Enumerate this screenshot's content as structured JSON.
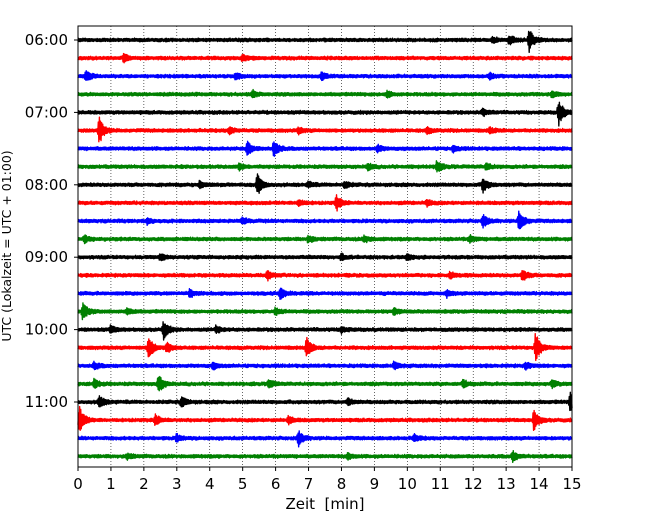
{
  "chart_data": {
    "type": "line",
    "title": "",
    "xlabel": "Zeit  [min]",
    "ylabel": "UTC (Lokalzeit = UTC + 01:00)",
    "xlim": [
      0,
      15
    ],
    "x_ticks": [
      "0",
      "1",
      "2",
      "3",
      "4",
      "5",
      "6",
      "7",
      "8",
      "9",
      "10",
      "11",
      "12",
      "13",
      "14",
      "15"
    ],
    "y_ticks": [
      "06:00",
      "07:00",
      "08:00",
      "09:00",
      "10:00",
      "11:00"
    ],
    "x_grid": "dotted vertical lines at each minute",
    "legend": "none",
    "colors": [
      "#000000",
      "#ff0000",
      "#0000ff",
      "#008000"
    ],
    "series": [
      {
        "start": "06:00",
        "color": "#000000",
        "events": [
          {
            "t": 13.7,
            "amp": 1.0
          },
          {
            "t": 13.1,
            "amp": 0.4
          },
          {
            "t": 12.6,
            "amp": 0.25
          }
        ]
      },
      {
        "start": "06:15",
        "color": "#ff0000",
        "events": [
          {
            "t": 1.4,
            "amp": 0.35
          },
          {
            "t": 5.0,
            "amp": 0.25
          }
        ]
      },
      {
        "start": "06:30",
        "color": "#0000ff",
        "events": [
          {
            "t": 0.25,
            "amp": 0.45
          },
          {
            "t": 4.8,
            "amp": 0.25
          },
          {
            "t": 7.4,
            "amp": 0.3
          },
          {
            "t": 12.5,
            "amp": 0.25
          }
        ]
      },
      {
        "start": "06:45",
        "color": "#008000",
        "events": [
          {
            "t": 5.3,
            "amp": 0.3
          },
          {
            "t": 9.4,
            "amp": 0.3
          },
          {
            "t": 14.4,
            "amp": 0.3
          }
        ]
      },
      {
        "start": "07:00",
        "color": "#000000",
        "events": [
          {
            "t": 14.6,
            "amp": 1.1
          },
          {
            "t": 12.3,
            "amp": 0.3
          }
        ]
      },
      {
        "start": "07:15",
        "color": "#ff0000",
        "events": [
          {
            "t": 0.65,
            "amp": 1.15
          },
          {
            "t": 4.6,
            "amp": 0.3
          },
          {
            "t": 6.7,
            "amp": 0.25
          },
          {
            "t": 10.6,
            "amp": 0.25
          },
          {
            "t": 12.5,
            "amp": 0.25
          }
        ]
      },
      {
        "start": "07:30",
        "color": "#0000ff",
        "events": [
          {
            "t": 5.15,
            "amp": 0.6
          },
          {
            "t": 5.95,
            "amp": 0.7
          },
          {
            "t": 9.1,
            "amp": 0.3
          },
          {
            "t": 11.4,
            "amp": 0.25
          }
        ]
      },
      {
        "start": "07:45",
        "color": "#008000",
        "events": [
          {
            "t": 4.9,
            "amp": 0.25
          },
          {
            "t": 8.8,
            "amp": 0.3
          },
          {
            "t": 10.9,
            "amp": 0.5
          },
          {
            "t": 12.4,
            "amp": 0.3
          }
        ]
      },
      {
        "start": "08:00",
        "color": "#000000",
        "events": [
          {
            "t": 5.45,
            "amp": 0.95
          },
          {
            "t": 12.3,
            "amp": 0.6
          },
          {
            "t": 3.7,
            "amp": 0.3
          },
          {
            "t": 8.1,
            "amp": 0.3
          },
          {
            "t": 7.0,
            "amp": 0.25
          }
        ]
      },
      {
        "start": "08:15",
        "color": "#ff0000",
        "events": [
          {
            "t": 7.85,
            "amp": 0.65
          },
          {
            "t": 6.7,
            "amp": 0.3
          },
          {
            "t": 10.6,
            "amp": 0.25
          }
        ]
      },
      {
        "start": "08:30",
        "color": "#0000ff",
        "events": [
          {
            "t": 13.4,
            "amp": 0.95
          },
          {
            "t": 12.3,
            "amp": 0.55
          },
          {
            "t": 2.1,
            "amp": 0.25
          },
          {
            "t": 5.0,
            "amp": 0.25
          }
        ]
      },
      {
        "start": "08:45",
        "color": "#008000",
        "events": [
          {
            "t": 0.2,
            "amp": 0.3
          },
          {
            "t": 7.0,
            "amp": 0.3
          },
          {
            "t": 8.7,
            "amp": 0.3
          },
          {
            "t": 11.9,
            "amp": 0.3
          }
        ]
      },
      {
        "start": "09:00",
        "color": "#000000",
        "events": [
          {
            "t": 2.5,
            "amp": 0.3
          },
          {
            "t": 8.0,
            "amp": 0.25
          },
          {
            "t": 10.0,
            "amp": 0.25
          }
        ]
      },
      {
        "start": "09:15",
        "color": "#ff0000",
        "events": [
          {
            "t": 5.75,
            "amp": 0.4
          },
          {
            "t": 13.5,
            "amp": 0.5
          },
          {
            "t": 11.3,
            "amp": 0.3
          }
        ]
      },
      {
        "start": "09:30",
        "color": "#0000ff",
        "events": [
          {
            "t": 6.15,
            "amp": 0.5
          },
          {
            "t": 3.4,
            "amp": 0.3
          },
          {
            "t": 11.2,
            "amp": 0.3
          }
        ]
      },
      {
        "start": "09:45",
        "color": "#008000",
        "events": [
          {
            "t": 0.15,
            "amp": 0.7
          },
          {
            "t": 1.5,
            "amp": 0.3
          },
          {
            "t": 6.0,
            "amp": 0.3
          },
          {
            "t": 9.6,
            "amp": 0.25
          }
        ]
      },
      {
        "start": "10:00",
        "color": "#000000",
        "events": [
          {
            "t": 2.6,
            "amp": 0.8
          },
          {
            "t": 1.0,
            "amp": 0.3
          },
          {
            "t": 4.2,
            "amp": 0.3
          },
          {
            "t": 8.0,
            "amp": 0.25
          }
        ]
      },
      {
        "start": "10:15",
        "color": "#ff0000",
        "events": [
          {
            "t": 2.15,
            "amp": 1.0
          },
          {
            "t": 2.7,
            "amp": 0.45
          },
          {
            "t": 6.95,
            "amp": 0.8
          },
          {
            "t": 13.9,
            "amp": 1.3
          }
        ]
      },
      {
        "start": "10:30",
        "color": "#0000ff",
        "events": [
          {
            "t": 0.5,
            "amp": 0.3
          },
          {
            "t": 4.1,
            "amp": 0.25
          },
          {
            "t": 9.6,
            "amp": 0.3
          },
          {
            "t": 13.6,
            "amp": 0.3
          }
        ]
      },
      {
        "start": "10:45",
        "color": "#008000",
        "events": [
          {
            "t": 2.45,
            "amp": 0.8
          },
          {
            "t": 0.5,
            "amp": 0.4
          },
          {
            "t": 5.8,
            "amp": 0.35
          },
          {
            "t": 11.7,
            "amp": 0.3
          },
          {
            "t": 14.4,
            "amp": 0.3
          }
        ]
      },
      {
        "start": "11:00",
        "color": "#000000",
        "events": [
          {
            "t": 0.65,
            "amp": 0.55
          },
          {
            "t": 3.15,
            "amp": 0.45
          },
          {
            "t": 14.95,
            "amp": 0.8
          },
          {
            "t": 8.2,
            "amp": 0.3
          }
        ]
      },
      {
        "start": "11:15",
        "color": "#ff0000",
        "events": [
          {
            "t": 0.05,
            "amp": 1.2
          },
          {
            "t": 2.35,
            "amp": 0.45
          },
          {
            "t": 13.85,
            "amp": 0.9
          },
          {
            "t": 6.4,
            "amp": 0.3
          }
        ]
      },
      {
        "start": "11:30",
        "color": "#0000ff",
        "events": [
          {
            "t": 6.7,
            "amp": 0.65
          },
          {
            "t": 3.0,
            "amp": 0.3
          },
          {
            "t": 10.2,
            "amp": 0.3
          }
        ]
      },
      {
        "start": "11:45",
        "color": "#008000",
        "events": [
          {
            "t": 13.2,
            "amp": 0.45
          },
          {
            "t": 1.5,
            "amp": 0.25
          },
          {
            "t": 8.2,
            "amp": 0.25
          }
        ]
      }
    ]
  }
}
